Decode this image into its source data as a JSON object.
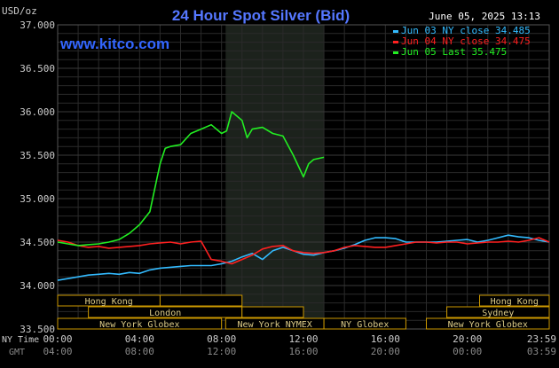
{
  "header": {
    "title": "24 Hour Spot Silver (Bid)",
    "units": "USD/oz",
    "date": "June 05, 2025 13:13",
    "website": "www.kitco.com"
  },
  "chart_data": {
    "type": "line",
    "title": "24 Hour Spot Silver (Bid)",
    "ylabel": "USD/oz",
    "xlabel": "",
    "ylim": [
      33.5,
      37.0
    ],
    "xlim_hours": [
      0,
      24
    ],
    "y_ticks": [
      "37.000",
      "36.500",
      "36.000",
      "35.500",
      "35.000",
      "34.500",
      "34.000",
      "33.500"
    ],
    "y_tick_values": [
      37.0,
      36.5,
      36.0,
      35.5,
      35.0,
      34.5,
      34.0,
      33.5
    ],
    "x_ticks_ny": [
      "00:00",
      "04:00",
      "08:00",
      "12:00",
      "16:00",
      "20:00",
      "23:59"
    ],
    "x_ticks_gmt": [
      "04:00",
      "08:00",
      "12:00",
      "16:00",
      "20:00",
      "00:00",
      "03:59"
    ],
    "x_tick_hours": [
      0,
      4,
      8,
      12,
      16,
      20,
      23.98
    ],
    "axis_row_labels": {
      "ny": "NY Time",
      "gmt": "GMT"
    },
    "grid": true,
    "legend_position": "top-right",
    "series": [
      {
        "name": "Jun 03 NY close 34.485",
        "color": "#33bbff",
        "x": [
          0,
          0.5,
          1,
          1.5,
          2,
          2.5,
          3,
          3.5,
          4,
          4.5,
          5,
          5.5,
          6,
          6.5,
          7,
          7.5,
          8,
          8.5,
          9,
          9.5,
          10,
          10.5,
          11,
          11.5,
          12,
          12.5,
          13,
          13.5,
          14,
          14.5,
          15,
          15.5,
          16,
          16.5,
          17,
          17.5,
          18,
          18.5,
          19,
          19.5,
          20,
          20.5,
          21,
          21.5,
          22,
          22.5,
          23,
          23.5,
          24
        ],
        "values": [
          34.06,
          34.08,
          34.1,
          34.12,
          34.13,
          34.14,
          34.13,
          34.15,
          34.14,
          34.18,
          34.2,
          34.21,
          34.22,
          34.23,
          34.23,
          34.23,
          34.25,
          34.28,
          34.33,
          34.37,
          34.3,
          34.4,
          34.44,
          34.4,
          34.36,
          34.35,
          34.38,
          34.4,
          34.43,
          34.47,
          34.52,
          34.55,
          34.55,
          34.54,
          34.5,
          34.5,
          34.5,
          34.5,
          34.51,
          34.52,
          34.53,
          34.5,
          34.52,
          34.55,
          34.58,
          34.56,
          34.55,
          34.52,
          34.5
        ]
      },
      {
        "name": "Jun 04 NY close 34.475",
        "color": "#ff2020",
        "x": [
          0,
          0.5,
          1,
          1.5,
          2,
          2.5,
          3,
          3.5,
          4,
          4.5,
          5,
          5.5,
          6,
          6.5,
          7,
          7.5,
          8,
          8.5,
          9,
          9.5,
          10,
          10.5,
          11,
          11.5,
          12,
          12.5,
          13,
          13.5,
          14,
          14.5,
          15,
          15.5,
          16,
          16.5,
          17,
          17.5,
          18,
          18.5,
          19,
          19.5,
          20,
          20.5,
          21,
          21.5,
          22,
          22.5,
          23,
          23.5,
          24
        ],
        "values": [
          34.52,
          34.5,
          34.46,
          34.44,
          34.45,
          34.43,
          34.44,
          34.45,
          34.46,
          34.48,
          34.49,
          34.5,
          34.48,
          34.5,
          34.51,
          34.3,
          34.28,
          34.25,
          34.3,
          34.35,
          34.42,
          34.45,
          34.46,
          34.4,
          34.38,
          34.37,
          34.38,
          34.4,
          34.44,
          34.46,
          34.45,
          34.44,
          34.44,
          34.46,
          34.48,
          34.5,
          34.5,
          34.49,
          34.5,
          34.5,
          34.48,
          34.49,
          34.5,
          34.5,
          34.51,
          34.5,
          34.52,
          34.55,
          34.5
        ]
      },
      {
        "name": "Jun 05 Last 35.475",
        "color": "#22ee22",
        "x": [
          0,
          0.5,
          1,
          1.5,
          2,
          2.5,
          3,
          3.5,
          4,
          4.5,
          5,
          5.25,
          5.5,
          6,
          6.5,
          7,
          7.5,
          8,
          8.25,
          8.5,
          9,
          9.25,
          9.5,
          10,
          10.5,
          11,
          11.5,
          12,
          12.25,
          12.5,
          13
        ],
        "values": [
          34.5,
          34.48,
          34.46,
          34.47,
          34.48,
          34.5,
          34.53,
          34.6,
          34.7,
          34.85,
          35.4,
          35.58,
          35.6,
          35.62,
          35.75,
          35.8,
          35.85,
          35.75,
          35.78,
          36.0,
          35.9,
          35.7,
          35.8,
          35.82,
          35.75,
          35.72,
          35.5,
          35.25,
          35.4,
          35.45,
          35.475
        ]
      }
    ],
    "session_bars": [
      {
        "label": "Hong Kong",
        "start": 0,
        "end": 5,
        "row": 0
      },
      {
        "label": "",
        "start": 5,
        "end": 9,
        "row": 0
      },
      {
        "label": "London",
        "start": 1.5,
        "end": 9,
        "row": 1
      },
      {
        "label": "",
        "start": 9,
        "end": 12,
        "row": 1
      },
      {
        "label": "New York Globex",
        "start": 0,
        "end": 8,
        "row": 2
      },
      {
        "label": "New York NYMEX",
        "start": 8.2,
        "end": 13,
        "row": 2
      },
      {
        "label": "NY Globex",
        "start": 13,
        "end": 17,
        "row": 2
      },
      {
        "label": "Hong Kong",
        "start": 20.6,
        "end": 24,
        "row": 0
      },
      {
        "label": "Sydney",
        "start": 19,
        "end": 24,
        "row": 1
      },
      {
        "label": "New York Globex",
        "start": 18,
        "end": 24,
        "row": 2
      }
    ],
    "shaded_region_hours": [
      8.2,
      13
    ],
    "background_color": "#000000",
    "grid_color": "#2a2a2a",
    "title_color": "#5577ff",
    "axis_text_color": "#cccccc",
    "bar_border_color": "#cc9900",
    "bar_text_color": "#ddcc88"
  }
}
